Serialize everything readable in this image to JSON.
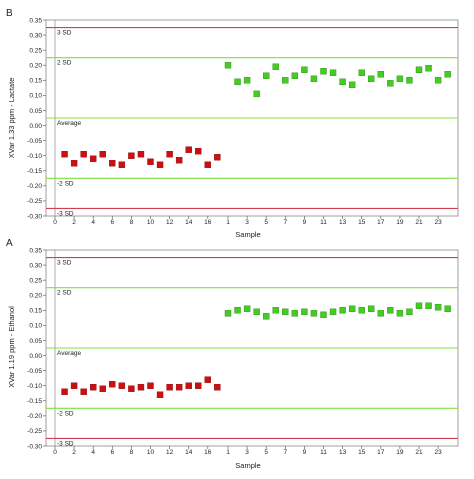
{
  "chart_data": [
    {
      "type": "scatter",
      "panel_label": "B",
      "ylabel": "XVar 1.33 ppm - Lactate",
      "xlabel": "Sample",
      "ylim": [
        -0.3,
        0.35
      ],
      "yticks": [
        "0.35",
        "0.30",
        "0.25",
        "0.20",
        "0.15",
        "0.10",
        "0.05",
        "0.00",
        "-0.05",
        "-0.10",
        "-0.15",
        "-0.20",
        "-0.25",
        "-0.30"
      ],
      "xticks": [
        "0",
        "2",
        "4",
        "6",
        "8",
        "10",
        "12",
        "14",
        "16",
        "1",
        "3",
        "5",
        "7",
        "9",
        "11",
        "13",
        "15",
        "17",
        "19",
        "21",
        "23"
      ],
      "reference_lines": [
        {
          "label": "3 SD",
          "value": 0.325,
          "color": "#d04050"
        },
        {
          "label": "2 SD",
          "value": 0.225,
          "color": "#80e040"
        },
        {
          "label": "Average",
          "value": 0.025,
          "color": "#80e040"
        },
        {
          "label": "-2 SD",
          "value": -0.175,
          "color": "#80e040"
        },
        {
          "label": "-3 SD",
          "value": -0.275,
          "color": "#d04050"
        }
      ],
      "series": [
        {
          "color": "#cc1010",
          "values": [
            -0.095,
            -0.125,
            -0.095,
            -0.11,
            -0.095,
            -0.125,
            -0.13,
            -0.1,
            -0.095,
            -0.12,
            -0.13,
            -0.095,
            -0.115,
            -0.08,
            -0.085,
            -0.13,
            -0.105
          ]
        },
        {
          "color": "#44cc22",
          "values": [
            0.2,
            0.145,
            0.15,
            0.105,
            0.165,
            0.195,
            0.15,
            0.165,
            0.185,
            0.155,
            0.18,
            0.175,
            0.145,
            0.135,
            0.175,
            0.155,
            0.17,
            0.14,
            0.155,
            0.15,
            0.185,
            0.19,
            0.15,
            0.17
          ]
        }
      ]
    },
    {
      "type": "scatter",
      "panel_label": "A",
      "ylabel": "XVar 1.19 ppm - Ethanol",
      "xlabel": "Sample",
      "ylim": [
        -0.3,
        0.35
      ],
      "yticks": [
        "0.35",
        "0.30",
        "0.25",
        "0.20",
        "0.15",
        "0.10",
        "0.05",
        "0.00",
        "-0.05",
        "-0.10",
        "-0.15",
        "-0.20",
        "-0.25",
        "-0.30"
      ],
      "xticks": [
        "0",
        "2",
        "4",
        "6",
        "8",
        "10",
        "12",
        "14",
        "16",
        "1",
        "3",
        "5",
        "7",
        "9",
        "11",
        "13",
        "15",
        "17",
        "19",
        "21",
        "23"
      ],
      "reference_lines": [
        {
          "label": "3 SD",
          "value": 0.325,
          "color": "#d04050"
        },
        {
          "label": "2 SD",
          "value": 0.225,
          "color": "#80e040"
        },
        {
          "label": "Average",
          "value": 0.025,
          "color": "#80e040"
        },
        {
          "label": "-2 SD",
          "value": -0.175,
          "color": "#80e040"
        },
        {
          "label": "-3 SD",
          "value": -0.275,
          "color": "#d04050"
        }
      ],
      "series": [
        {
          "color": "#cc1010",
          "values": [
            -0.12,
            -0.1,
            -0.12,
            -0.105,
            -0.11,
            -0.095,
            -0.1,
            -0.11,
            -0.105,
            -0.1,
            -0.13,
            -0.105,
            -0.105,
            -0.1,
            -0.1,
            -0.08,
            -0.105
          ]
        },
        {
          "color": "#44cc22",
          "values": [
            0.14,
            0.15,
            0.155,
            0.145,
            0.13,
            0.15,
            0.145,
            0.14,
            0.145,
            0.14,
            0.135,
            0.145,
            0.15,
            0.155,
            0.15,
            0.155,
            0.14,
            0.15,
            0.14,
            0.145,
            0.165,
            0.165,
            0.16,
            0.155
          ]
        }
      ]
    }
  ]
}
